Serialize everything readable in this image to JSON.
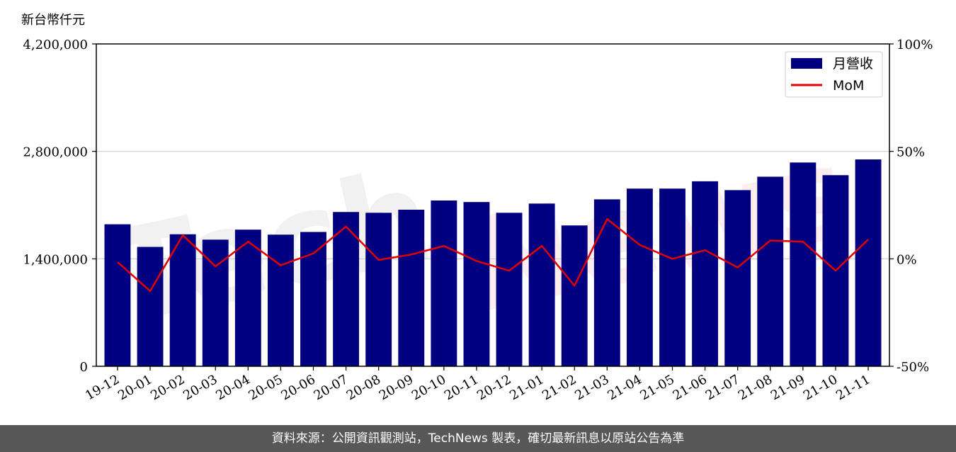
{
  "footer": {
    "source_note": "資料來源：公開資訊觀測站，TechNews 製表，確切最新訊息以原站公告為準"
  },
  "watermark": {
    "left": "Tech",
    "right": "News"
  },
  "colors": {
    "bar": "#000080",
    "line": "#e00000",
    "grid": "#cccccc"
  },
  "chart_data": {
    "type": "bar",
    "unit_label": "新台幣仟元",
    "categories": [
      "19-12",
      "20-01",
      "20-02",
      "20-03",
      "20-04",
      "20-05",
      "20-06",
      "20-07",
      "20-08",
      "20-09",
      "20-10",
      "20-11",
      "20-12",
      "21-01",
      "21-02",
      "21-03",
      "21-04",
      "21-05",
      "21-06",
      "21-07",
      "21-08",
      "21-09",
      "21-10",
      "21-11"
    ],
    "series": [
      {
        "name": "月營收",
        "type": "bar",
        "axis": "left",
        "values": [
          1850000,
          1555000,
          1720000,
          1650000,
          1780000,
          1715000,
          1750000,
          2010000,
          2000000,
          2040000,
          2160000,
          2140000,
          2000000,
          2120000,
          1835000,
          2175000,
          2315000,
          2315000,
          2410000,
          2295000,
          2470000,
          2655000,
          2490000,
          2695000
        ]
      },
      {
        "name": "MoM",
        "type": "line",
        "axis": "right",
        "values": [
          -1.5,
          -15.0,
          11.0,
          -3.5,
          8.0,
          -3.0,
          2.5,
          15.0,
          -0.5,
          2.0,
          6.0,
          -1.0,
          -5.5,
          6.0,
          -12.5,
          18.5,
          6.5,
          0.0,
          4.0,
          -4.0,
          8.5,
          8.0,
          -5.5,
          9.0
        ]
      }
    ],
    "y_left": {
      "ylim": [
        0,
        4200000
      ],
      "ticks": [
        "0",
        "1,400,000",
        "2,800,000",
        "4,200,000"
      ],
      "tick_values": [
        0,
        1400000,
        2800000,
        4200000
      ]
    },
    "y_right": {
      "ylim": [
        -50,
        100
      ],
      "ticks": [
        "-50%",
        "0%",
        "50%",
        "100%"
      ],
      "tick_values": [
        -50,
        0,
        50,
        100
      ]
    },
    "grid": "horizontal",
    "legend_position": "top-right"
  }
}
